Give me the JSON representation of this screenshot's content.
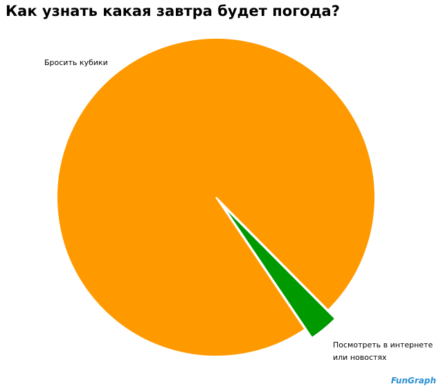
{
  "chart_data": {
    "type": "pie",
    "title": "Как узнать какая завтра будет погода?",
    "categories": [
      "Бросить кубики",
      "Посмотреть в интернете или новостях"
    ],
    "values": [
      97,
      3
    ],
    "colors": [
      "#ff9900",
      "#009900"
    ],
    "watermark": "FunGraph"
  }
}
